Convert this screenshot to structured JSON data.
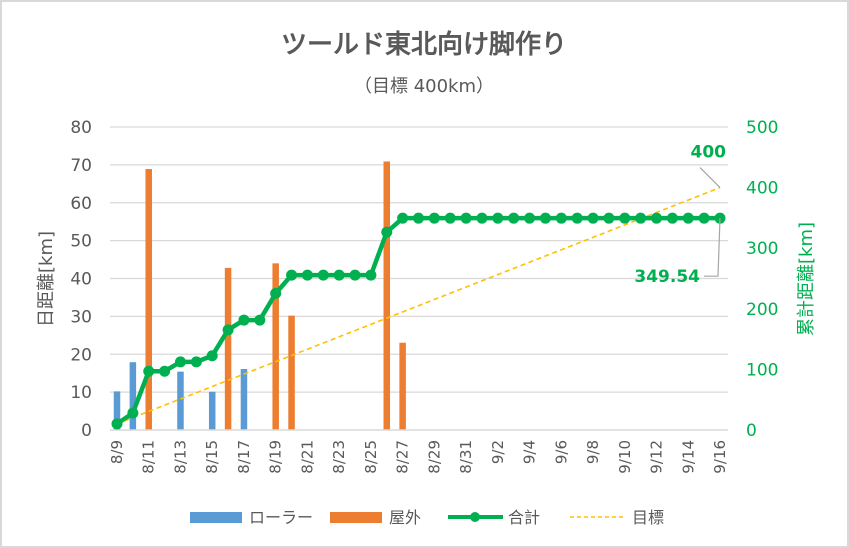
{
  "chart_data": {
    "type": "bar+line",
    "title": "ツールド東北向け脚作り",
    "subtitle": "（目標 400km）",
    "x": [
      "8/9",
      "8/10",
      "8/11",
      "8/12",
      "8/13",
      "8/14",
      "8/15",
      "8/16",
      "8/17",
      "8/18",
      "8/19",
      "8/20",
      "8/21",
      "8/22",
      "8/23",
      "8/24",
      "8/25",
      "8/26",
      "8/27",
      "8/28",
      "8/29",
      "8/30",
      "8/31",
      "9/1",
      "9/2",
      "9/3",
      "9/4",
      "9/5",
      "9/6",
      "9/7",
      "9/8",
      "9/9",
      "9/10",
      "9/11",
      "9/12",
      "9/13",
      "9/14",
      "9/15",
      "9/16"
    ],
    "xtick_labels": [
      "8/9",
      "8/11",
      "8/13",
      "8/15",
      "8/17",
      "8/19",
      "8/21",
      "8/23",
      "8/25",
      "8/27",
      "8/29",
      "8/31",
      "9/2",
      "9/4",
      "9/6",
      "9/8",
      "9/10",
      "9/12",
      "9/14",
      "9/16"
    ],
    "ylabel": "日距離[km]",
    "ylim": [
      0,
      80
    ],
    "yticks": [
      "0",
      "10",
      "20",
      "30",
      "40",
      "50",
      "60",
      "70",
      "80"
    ],
    "y2label": "累計距離[km]",
    "y2lim": [
      0,
      500
    ],
    "y2ticks": [
      "0",
      "100",
      "200",
      "300",
      "400",
      "500"
    ],
    "grid": true,
    "legend_position": "bottom",
    "series": [
      {
        "name": "ローラー",
        "type": "bar",
        "axis": "left",
        "color": "#5B9BD5",
        "values": [
          10.2,
          17.9,
          0,
          0,
          15.4,
          0,
          10.1,
          0,
          16.1,
          0,
          0,
          0,
          0,
          0,
          0,
          0,
          0,
          0,
          0,
          0,
          0,
          0,
          0,
          0,
          0,
          0,
          0,
          0,
          0,
          0,
          0,
          0,
          0,
          0,
          0,
          0,
          0,
          0,
          0
        ]
      },
      {
        "name": "屋外",
        "type": "bar",
        "axis": "left",
        "color": "#ED7D31",
        "values": [
          0,
          0,
          68.9,
          0,
          0,
          0,
          0,
          42.8,
          0,
          0,
          44.0,
          30.2,
          0,
          0,
          0,
          0,
          0,
          70.9,
          23.04,
          0,
          0,
          0,
          0,
          0,
          0,
          0,
          0,
          0,
          0,
          0,
          0,
          0,
          0,
          0,
          0,
          0,
          0,
          0,
          0
        ]
      },
      {
        "name": "合計",
        "type": "line",
        "axis": "right",
        "color": "#00B050",
        "values": [
          10.2,
          28.1,
          97.0,
          97.0,
          112.4,
          112.4,
          122.5,
          165.3,
          181.4,
          181.4,
          225.4,
          255.6,
          255.6,
          255.6,
          255.6,
          255.6,
          255.6,
          326.5,
          349.54,
          349.54,
          349.54,
          349.54,
          349.54,
          349.54,
          349.54,
          349.54,
          349.54,
          349.54,
          349.54,
          349.54,
          349.54,
          349.54,
          349.54,
          349.54,
          349.54,
          349.54,
          349.54,
          349.54,
          349.54
        ]
      },
      {
        "name": "目標",
        "type": "line-dashed",
        "axis": "right",
        "color": "#FFC000",
        "start": 10.2,
        "end": 400
      }
    ],
    "annotations": [
      {
        "text": "400",
        "series": "目標",
        "at": "9/16"
      },
      {
        "text": "349.54",
        "series": "合計",
        "at": "9/16"
      }
    ]
  }
}
